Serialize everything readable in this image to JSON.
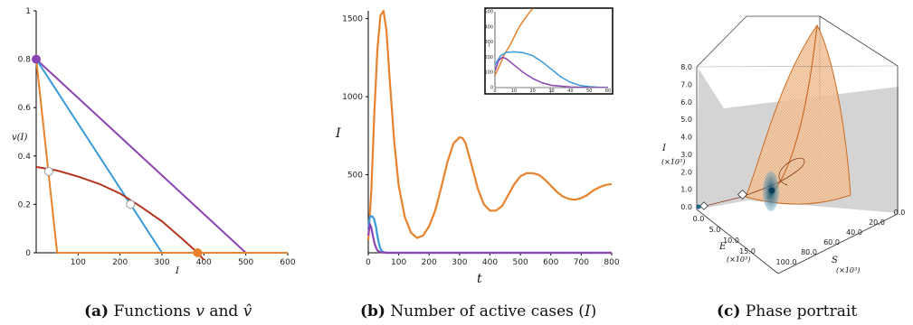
{
  "colors": {
    "orange": "#E8822C",
    "blue": "#3A9AD8",
    "purple": "#8B45B3",
    "red": "#B5351F",
    "axis": "#000000"
  },
  "chart_data": [
    {
      "id": "a",
      "type": "line",
      "ylabel": "v(I)",
      "xlabel": "I",
      "xlim": [
        0,
        600
      ],
      "ylim": [
        0,
        1
      ],
      "xticks": [
        100,
        200,
        300,
        400,
        500,
        600
      ],
      "yticks": [
        0,
        0.2,
        0.4,
        0.6,
        0.8,
        1
      ],
      "ytick_labels": [
        "0",
        "0.2",
        "0.4",
        "0.6",
        "0.8",
        "1"
      ],
      "series": [
        {
          "color": "purple",
          "x": [
            0,
            500,
            600
          ],
          "y": [
            0.8,
            0,
            0
          ]
        },
        {
          "color": "blue",
          "x": [
            0,
            300
          ],
          "y": [
            0.8,
            0
          ]
        },
        {
          "color": "orange",
          "x": [
            0,
            50,
            600
          ],
          "y": [
            0.8,
            0,
            0
          ]
        },
        {
          "color": "red",
          "x": [
            0,
            50,
            100,
            150,
            200,
            250,
            300,
            350,
            385,
            400
          ],
          "y": [
            0.355,
            0.34,
            0.315,
            0.285,
            0.245,
            0.19,
            0.13,
            0.055,
            0,
            -0.03
          ]
        }
      ],
      "markers": [
        {
          "x": 0,
          "y": 0.8,
          "fill": "purple"
        },
        {
          "x": 30,
          "y": 0.336,
          "fill": "white"
        },
        {
          "x": 225,
          "y": 0.2,
          "fill": "white"
        },
        {
          "x": 385,
          "y": 0,
          "fill": "orange"
        }
      ],
      "caption": {
        "label": "(a)",
        "text": " Functions ",
        "v": "v",
        "and": " and ",
        "vhat": "v̂"
      }
    },
    {
      "id": "b",
      "type": "line",
      "ylabel": "I",
      "xlabel": "t",
      "xlim": [
        0,
        800
      ],
      "ylim": [
        0,
        1550
      ],
      "xticks": [
        0,
        100,
        200,
        300,
        400,
        500,
        600,
        700,
        800
      ],
      "yticks": [
        500,
        1000,
        1500
      ],
      "series": [
        {
          "color": "orange",
          "x": [
            0,
            10,
            20,
            30,
            40,
            50,
            60,
            70,
            85,
            100,
            120,
            140,
            160,
            180,
            200,
            220,
            240,
            260,
            280,
            300,
            310,
            320,
            340,
            360,
            380,
            400,
            420,
            440,
            460,
            480,
            500,
            520,
            540,
            560,
            580,
            600,
            620,
            640,
            660,
            680,
            700,
            720,
            740,
            760,
            780,
            800
          ],
          "y": [
            80,
            400,
            900,
            1300,
            1520,
            1550,
            1420,
            1120,
            720,
            430,
            230,
            130,
            95,
            110,
            170,
            270,
            420,
            580,
            700,
            740,
            735,
            700,
            560,
            410,
            310,
            270,
            270,
            300,
            370,
            440,
            490,
            510,
            510,
            500,
            470,
            430,
            390,
            360,
            345,
            340,
            350,
            370,
            400,
            420,
            435,
            440
          ]
        },
        {
          "color": "blue",
          "x": [
            0,
            5,
            10,
            15,
            20,
            25,
            30,
            35,
            40,
            45,
            50,
            60,
            800
          ],
          "y": [
            150,
            230,
            235,
            230,
            210,
            170,
            110,
            60,
            25,
            10,
            4,
            0,
            0
          ]
        },
        {
          "color": "purple",
          "x": [
            0,
            5,
            10,
            15,
            20,
            25,
            30,
            40,
            60,
            800
          ],
          "y": [
            110,
            185,
            160,
            110,
            65,
            35,
            15,
            3,
            0,
            0
          ]
        }
      ],
      "inset": {
        "ylabel": "I",
        "xlabel": "t",
        "xlim": [
          0,
          60
        ],
        "ylim": [
          0,
          500
        ],
        "xticks": [
          0,
          10,
          20,
          30,
          40,
          50,
          60
        ],
        "yticks": [
          0,
          100,
          200,
          300,
          400,
          500
        ],
        "series": [
          {
            "color": "orange",
            "x": [
              0,
              3,
              5,
              8,
              10,
              12,
              15,
              18,
              20
            ],
            "y": [
              80,
              160,
              220,
              280,
              330,
              380,
              440,
              490,
              520
            ]
          },
          {
            "color": "blue",
            "x": [
              0,
              3,
              6,
              10,
              15,
              20,
              25,
              30,
              35,
              40,
              45,
              50,
              55,
              60
            ],
            "y": [
              150,
              210,
              232,
              236,
              230,
              210,
              170,
              120,
              70,
              35,
              15,
              6,
              2,
              1
            ]
          },
          {
            "color": "purple",
            "x": [
              0,
              2,
              4,
              6,
              10,
              15,
              20,
              25,
              30,
              40,
              50,
              60
            ],
            "y": [
              110,
              180,
              200,
              190,
              150,
              100,
              60,
              32,
              15,
              4,
              1,
              0
            ]
          }
        ]
      },
      "caption": {
        "label": "(b)",
        "text": " Number of active cases (",
        "I": "I",
        "close": ")"
      }
    },
    {
      "id": "c",
      "type": "3d-scatter",
      "axes": {
        "I": {
          "label": "I",
          "unit": "(×10³)",
          "ticks": [
            "0.0",
            "1.0",
            "2.0",
            "3.0",
            "4.0",
            "5.0",
            "6.0",
            "7.0",
            "8.0"
          ]
        },
        "E": {
          "label": "E",
          "unit": "(×10³)",
          "ticks": [
            "0.0",
            "5.0",
            "10.0",
            "15.0"
          ]
        },
        "S": {
          "label": "S",
          "unit": "(×10³)",
          "ticks": [
            "100.0",
            "80.0",
            "60.0",
            "40.0",
            "20.0",
            "0.0"
          ]
        }
      },
      "caption": {
        "label": "(c)",
        "text": " Phase portrait"
      }
    }
  ]
}
